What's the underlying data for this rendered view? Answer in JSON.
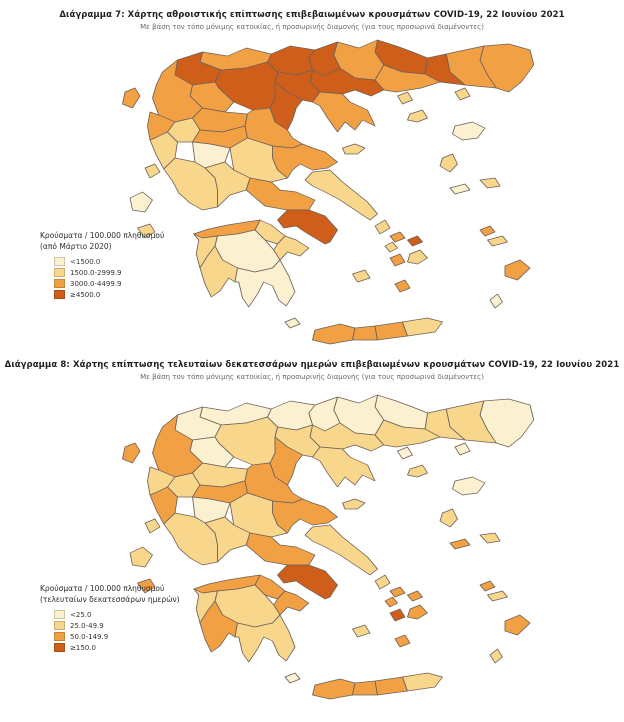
{
  "chart_data": [
    {
      "type": "choropleth",
      "title": "Διάγραμμα 7: Χάρτης αθροιστικής επίπτωσης επιβεβαιωμένων κρουσμάτων COVID-19, 22 Ιουνίου 2021",
      "subtitle": "Με βάση τον τόπο μόνιμης κατοικίας, ή προσωρινής διαμονής (για τους προσωρινά διαμένοντες)",
      "legend_title_line1": "Κρούσματα / 100.000 πληθυσμού",
      "legend_title_line2": "(από Μάρτιο 2020)",
      "classes": [
        {
          "label": "<1500.0",
          "color": "#FBF0D0"
        },
        {
          "label": "1500.0-2999.9",
          "color": "#F8D68C"
        },
        {
          "label": "3000.0-4499.9",
          "color": "#F2A044"
        },
        {
          "label": "≥4500.0",
          "color": "#CE5E1A"
        }
      ],
      "region_class": {
        "Evros": 2,
        "Rodopi": 2,
        "Xanthi": 3,
        "Drama": 3,
        "Kavala": 2,
        "Serres": 2,
        "Kilkis": 3,
        "Thessaloniki": 3,
        "Chalkidiki": 2,
        "Pella": 3,
        "Imathia": 3,
        "Pieria": 3,
        "Florina": 2,
        "Kastoria": 3,
        "Kozani": 3,
        "Grevena": 2,
        "Ioannina": 2,
        "Thesprotia": 2,
        "Preveza": 1,
        "Arta": 1,
        "Trikala": 2,
        "Karditsa": 2,
        "Larissa": 2,
        "Magnesia": 2,
        "Evrytania": 0,
        "Phthiotis": 1,
        "Phocis": 1,
        "Aetolia-Acarnania": 1,
        "Boeotia": 2,
        "Euboea": 1,
        "Attica": 3,
        "Corinthia": 1,
        "Argolis": 1,
        "Achaea": 2,
        "Elis": 1,
        "Arcadia": 0,
        "Messenia": 1,
        "Laconia": 0,
        "Corfu": 2,
        "Lefkada": 1,
        "Kefalonia": 0,
        "Zakynthos": 1,
        "Thasos": 1,
        "Samothrace": 1,
        "Limnos": 1,
        "Lesvos": 0,
        "Chios": 1,
        "Samos": 1,
        "Ikaria": 0,
        "Sporades": 1,
        "Andros": 1,
        "Tinos": 2,
        "Mykonos": 3,
        "Syros": 1,
        "Paros": 2,
        "Naxos": 1,
        "Milos": 1,
        "Santorini": 2,
        "Rhodes": 2,
        "Kos": 1,
        "Kalymnos": 2,
        "Karpathos": 0,
        "Chania": 2,
        "Rethymno": 2,
        "Heraklion": 2,
        "Lasithi": 1,
        "Kythira": 0
      }
    },
    {
      "type": "choropleth",
      "title": "Διάγραμμα 8: Χάρτης επίπτωσης τελευταίων δεκατεσσάρων ημερών επιβεβαιωμένων κρουσμάτων COVID-19, 22 Ιουνίου 2021",
      "subtitle": "Με βάση τον τόπο μόνιμης κατοικίας, ή προσωρινής διαμονής (για τους προσωρινά διαμένοντες)",
      "legend_title_line1": "Κρούσματα / 100.000 πληθυσμού",
      "legend_title_line2": "(τελευταίων δεκατεσσάρων ημερών)",
      "classes": [
        {
          "label": "<25.0",
          "color": "#FBF0D0"
        },
        {
          "label": "25.0-49.9",
          "color": "#F8D68C"
        },
        {
          "label": "50.0-149.9",
          "color": "#F2A044"
        },
        {
          "label": "≥150.0",
          "color": "#CE5E1A"
        }
      ],
      "region_class": {
        "Evros": 0,
        "Rodopi": 1,
        "Xanthi": 1,
        "Drama": 0,
        "Kavala": 1,
        "Serres": 0,
        "Kilkis": 0,
        "Thessaloniki": 1,
        "Chalkidiki": 1,
        "Pella": 0,
        "Imathia": 1,
        "Pieria": 2,
        "Florina": 0,
        "Kastoria": 0,
        "Kozani": 1,
        "Grevena": 0,
        "Ioannina": 2,
        "Thesprotia": 1,
        "Preveza": 2,
        "Arta": 1,
        "Trikala": 1,
        "Karditsa": 2,
        "Larissa": 2,
        "Magnesia": 2,
        "Evrytania": 0,
        "Phthiotis": 1,
        "Phocis": 1,
        "Aetolia-Acarnania": 1,
        "Boeotia": 2,
        "Euboea": 1,
        "Attica": 3,
        "Corinthia": 2,
        "Argolis": 2,
        "Achaea": 2,
        "Elis": 1,
        "Arcadia": 1,
        "Messenia": 2,
        "Laconia": 1,
        "Corfu": 2,
        "Lefkada": 1,
        "Kefalonia": 1,
        "Zakynthos": 2,
        "Thasos": 0,
        "Samothrace": 0,
        "Limnos": 1,
        "Lesvos": 0,
        "Chios": 1,
        "Samos": 1,
        "Ikaria": 2,
        "Sporades": 1,
        "Andros": 1,
        "Tinos": 2,
        "Mykonos": 2,
        "Syros": 2,
        "Paros": 3,
        "Naxos": 2,
        "Milos": 1,
        "Santorini": 2,
        "Rhodes": 2,
        "Kos": 1,
        "Kalymnos": 2,
        "Karpathos": 1,
        "Chania": 2,
        "Rethymno": 2,
        "Heraklion": 2,
        "Lasithi": 1,
        "Kythira": 0
      }
    }
  ],
  "map_style": {
    "border_color": "#6e6259",
    "border_width": 0.7
  }
}
